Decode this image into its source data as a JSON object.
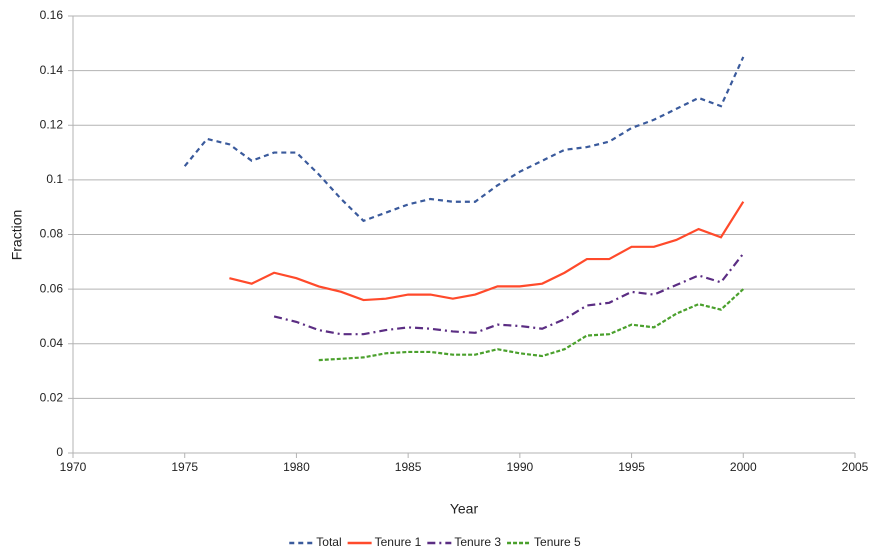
{
  "chart_data": {
    "type": "line",
    "xlabel": "Year",
    "ylabel": "Fraction",
    "x": [
      1975,
      1976,
      1977,
      1978,
      1979,
      1980,
      1981,
      1982,
      1983,
      1984,
      1985,
      1986,
      1987,
      1988,
      1989,
      1990,
      1991,
      1992,
      1993,
      1994,
      1995,
      1996,
      1997,
      1998,
      1999,
      2000
    ],
    "series": [
      {
        "name": "Total",
        "color": "#3a5a9c",
        "style": "dashed",
        "values": [
          0.105,
          0.115,
          0.113,
          0.107,
          0.11,
          0.11,
          0.102,
          0.093,
          0.085,
          0.088,
          0.091,
          0.093,
          0.092,
          0.092,
          0.098,
          0.103,
          0.107,
          0.111,
          0.112,
          0.114,
          0.119,
          0.122,
          0.126,
          0.13,
          0.127,
          0.145
        ]
      },
      {
        "name": "Tenure 1",
        "color": "#ff4a2b",
        "style": "solid",
        "values": [
          null,
          null,
          0.064,
          0.062,
          0.066,
          0.064,
          0.061,
          0.059,
          0.056,
          0.0565,
          0.058,
          0.058,
          0.0565,
          0.058,
          0.061,
          0.061,
          0.062,
          0.066,
          0.071,
          0.071,
          0.0755,
          0.0755,
          0.078,
          0.082,
          0.079,
          0.092
        ]
      },
      {
        "name": "Tenure 3",
        "color": "#5b2d83",
        "style": "dashdot",
        "values": [
          null,
          null,
          null,
          null,
          0.05,
          0.048,
          0.045,
          0.0435,
          0.0435,
          0.045,
          0.046,
          0.0455,
          0.0445,
          0.044,
          0.047,
          0.0465,
          0.0455,
          0.049,
          0.054,
          0.055,
          0.059,
          0.058,
          0.0615,
          0.065,
          0.0625,
          0.073
        ]
      },
      {
        "name": "Tenure 5",
        "color": "#4aa02c",
        "style": "dotted",
        "values": [
          null,
          null,
          null,
          null,
          null,
          null,
          0.034,
          0.0345,
          0.035,
          0.0365,
          0.037,
          0.037,
          0.036,
          0.036,
          0.038,
          0.0365,
          0.0355,
          0.038,
          0.043,
          0.0435,
          0.047,
          0.046,
          0.051,
          0.0545,
          0.0525,
          0.06
        ]
      }
    ],
    "xlim": [
      1970,
      2005
    ],
    "xticks": [
      1970,
      1975,
      1980,
      1985,
      1990,
      1995,
      2000,
      2005
    ],
    "ylim": [
      0,
      0.16
    ],
    "yticks": [
      0,
      0.02,
      0.04,
      0.06,
      0.08,
      0.1,
      0.12,
      0.14,
      0.16
    ],
    "grid": true,
    "legend": "bottom"
  }
}
